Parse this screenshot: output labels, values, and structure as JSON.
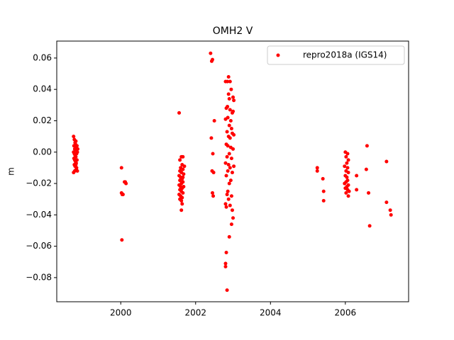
{
  "chart_data": {
    "type": "scatter",
    "title": "OMH2 V",
    "ylabel": "m",
    "xlim": [
      1998.29,
      2007.69
    ],
    "ylim": [
      -0.0954,
      0.0708
    ],
    "xticks": [
      2000,
      2002,
      2004,
      2006
    ],
    "yticks": [
      {
        "value": -0.08,
        "label": "−0.08"
      },
      {
        "value": -0.06,
        "label": "−0.06"
      },
      {
        "value": -0.04,
        "label": "−0.04"
      },
      {
        "value": -0.02,
        "label": "−0.02"
      },
      {
        "value": 0,
        "label": "0.00"
      },
      {
        "value": 0.02,
        "label": "0.02"
      },
      {
        "value": 0.04,
        "label": "0.04"
      },
      {
        "value": 0.06,
        "label": "0.06"
      }
    ],
    "legend": "upper right",
    "series": [
      {
        "name": "repro2018a (IGS14)",
        "color": "#ff0000",
        "x": [
          1998.74,
          1998.76,
          1998.78,
          1998.8,
          1998.75,
          1998.77,
          1998.79,
          1998.81,
          1998.83,
          1998.74,
          1998.76,
          1998.78,
          1998.8,
          1998.82,
          1998.84,
          1998.75,
          1998.77,
          1998.79,
          1998.81,
          1998.83,
          1998.76,
          1998.78,
          1998.8,
          1998.82,
          1998.74,
          1998.77,
          1998.81,
          1998.84,
          1998.85,
          1998.79,
          2000.02,
          2000.1,
          2000.14,
          2000.12,
          2000.02,
          2000.04,
          2000.06,
          2000.03,
          2001.56,
          2001.62,
          2001.66,
          2001.58,
          2001.64,
          2001.6,
          2001.66,
          2001.58,
          2001.62,
          2001.68,
          2001.56,
          2001.6,
          2001.64,
          2001.58,
          2001.66,
          2001.62,
          2001.56,
          2001.6,
          2001.64,
          2001.68,
          2001.58,
          2001.62,
          2001.66,
          2001.56,
          2001.6,
          2001.64,
          2001.58,
          2001.62,
          2001.64,
          2001.62,
          2001.66,
          2001.7,
          2002.4,
          2002.45,
          2002.43,
          2002.42,
          2002.46,
          2002.44,
          2002.48,
          2002.45,
          2002.47,
          2002.5,
          2002.88,
          2002.85,
          2002.92,
          2002.8,
          2002.95,
          2002.88,
          2003.0,
          2002.9,
          2003.02,
          2002.85,
          2002.82,
          2002.92,
          2002.98,
          2003.0,
          2002.86,
          2002.8,
          2002.94,
          2002.9,
          2002.96,
          2002.84,
          2003.02,
          2002.88,
          2002.92,
          2002.98,
          2002.82,
          2002.86,
          2002.94,
          2003.0,
          2002.9,
          2002.84,
          2002.96,
          2002.8,
          2002.88,
          2002.92,
          2003.02,
          2002.86,
          2002.98,
          2002.82,
          2002.94,
          2002.9,
          2002.86,
          2002.84,
          2002.96,
          2002.88,
          2002.8,
          2002.82,
          2002.92,
          2002.98,
          2003.0,
          2002.96,
          2002.9,
          2002.82,
          2002.8,
          2002.8,
          2002.84,
          2005.25,
          2005.25,
          2005.4,
          2005.42,
          2005.42,
          2006.0,
          2006.06,
          2006.02,
          2006.08,
          2006.04,
          2005.98,
          2006.06,
          2006.02,
          2006.08,
          2006.0,
          2006.04,
          2006.06,
          2006.02,
          2005.98,
          2006.08,
          2006.04,
          2006.0,
          2006.06,
          2006.1,
          2006.02,
          2006.08,
          2006.3,
          2006.3,
          2006.58,
          2006.56,
          2006.62,
          2006.65,
          2007.1,
          2007.1,
          2007.2,
          2007.22
        ],
        "values": [
          0.01,
          0.008,
          0.006,
          0.007,
          0.004,
          0.002,
          0.003,
          0.001,
          0.004,
          0.0,
          -0.001,
          -0.002,
          -0.003,
          -0.001,
          0.0,
          -0.004,
          -0.005,
          -0.006,
          -0.007,
          -0.005,
          -0.008,
          -0.009,
          -0.008,
          -0.01,
          -0.013,
          -0.012,
          -0.011,
          -0.012,
          0.002,
          0.005,
          -0.01,
          -0.019,
          -0.02,
          -0.019,
          -0.026,
          -0.027,
          -0.027,
          -0.056,
          0.025,
          -0.003,
          -0.003,
          -0.005,
          -0.008,
          -0.01,
          -0.011,
          -0.012,
          -0.013,
          -0.014,
          -0.015,
          -0.016,
          -0.017,
          -0.018,
          -0.019,
          -0.02,
          -0.021,
          -0.022,
          -0.023,
          -0.022,
          -0.024,
          -0.025,
          -0.026,
          -0.027,
          -0.028,
          -0.029,
          -0.03,
          -0.031,
          -0.033,
          -0.037,
          -0.016,
          -0.009,
          0.063,
          0.059,
          0.058,
          0.009,
          -0.001,
          -0.012,
          -0.013,
          -0.026,
          -0.028,
          0.02,
          0.048,
          0.045,
          0.045,
          0.045,
          0.04,
          0.037,
          0.035,
          0.034,
          0.033,
          0.029,
          0.028,
          0.027,
          0.025,
          0.026,
          0.022,
          0.021,
          0.02,
          0.017,
          0.015,
          0.013,
          0.011,
          0.01,
          0.009,
          0.012,
          0.005,
          0.004,
          0.003,
          0.002,
          -0.001,
          -0.003,
          -0.004,
          -0.007,
          -0.008,
          -0.01,
          -0.009,
          -0.012,
          -0.013,
          -0.015,
          -0.018,
          -0.02,
          -0.025,
          -0.027,
          -0.028,
          -0.03,
          -0.033,
          -0.035,
          -0.034,
          -0.037,
          -0.042,
          -0.046,
          -0.054,
          -0.064,
          -0.071,
          -0.073,
          -0.088,
          -0.01,
          -0.012,
          -0.017,
          -0.025,
          -0.031,
          0.0,
          -0.001,
          -0.003,
          -0.005,
          -0.007,
          -0.009,
          -0.01,
          -0.012,
          -0.013,
          -0.015,
          -0.016,
          -0.018,
          -0.019,
          -0.02,
          -0.021,
          -0.022,
          -0.023,
          -0.024,
          -0.025,
          -0.026,
          -0.028,
          -0.015,
          -0.024,
          0.004,
          -0.011,
          -0.026,
          -0.047,
          -0.006,
          -0.032,
          -0.037,
          -0.04
        ]
      }
    ]
  }
}
